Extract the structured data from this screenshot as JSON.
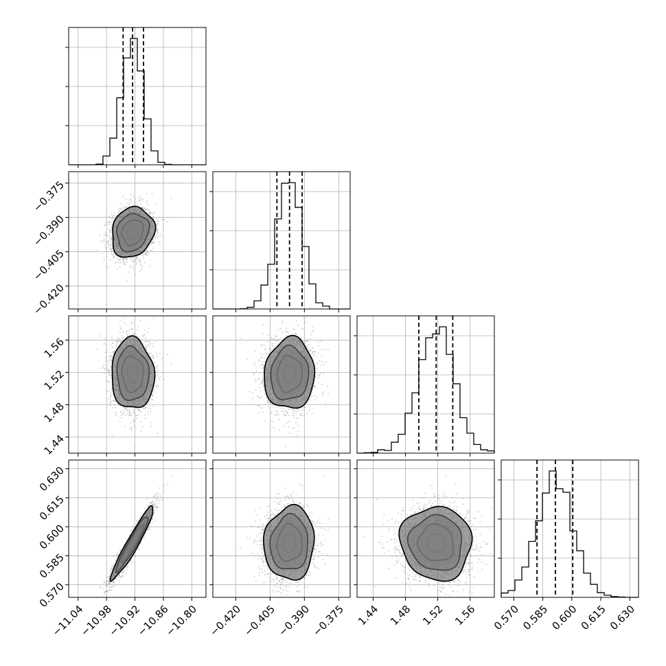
{
  "chart_data": {
    "type": "corner",
    "parameters": [
      {
        "name": "",
        "mean": -10.925,
        "sd": 0.0225,
        "range": [
          -11.06,
          -10.77
        ],
        "ticks": [
          -11.04,
          -10.98,
          -10.92,
          -10.86,
          -10.8
        ],
        "tick_labels": [
          "−11.04",
          "−10.98",
          "−10.92",
          "−10.86",
          "−10.80"
        ],
        "quantiles": [
          -10.945,
          -10.925,
          -10.902
        ]
      },
      {
        "name": "",
        "mean": -0.3965,
        "sd": 0.0055,
        "range": [
          -0.43,
          -0.37
        ],
        "ticks": [
          -0.42,
          -0.405,
          -0.39,
          -0.375
        ],
        "tick_labels": [
          "−0.420",
          "−0.405",
          "−0.390",
          "−0.375"
        ],
        "quantiles": [
          -0.402,
          -0.3965,
          -0.391
        ]
      },
      {
        "name": "",
        "mean": 1.518,
        "sd": 0.022,
        "range": [
          1.42,
          1.59
        ],
        "ticks": [
          1.44,
          1.48,
          1.52,
          1.56
        ],
        "tick_labels": [
          "1.44",
          "1.48",
          "1.52",
          "1.56"
        ],
        "quantiles": [
          1.4965,
          1.518,
          1.5385
        ]
      },
      {
        "name": "",
        "mean": 0.5915,
        "sd": 0.0095,
        "range": [
          0.5635,
          0.6345
        ],
        "ticks": [
          0.57,
          0.585,
          0.6,
          0.615,
          0.63
        ],
        "tick_labels": [
          "0.570",
          "0.585",
          "0.600",
          "0.615",
          "0.630"
        ],
        "quantiles": [
          0.582,
          0.5915,
          0.6005
        ]
      }
    ],
    "correlations": [
      [
        1,
        0.15,
        -0.05,
        0.95
      ],
      [
        0.15,
        1,
        0.05,
        0.05
      ],
      [
        -0.05,
        0.05,
        1,
        -0.05
      ],
      [
        0.95,
        0.05,
        -0.05,
        1
      ]
    ],
    "histogram_bins": 20,
    "contour_levels": [
      0.5,
      1.0,
      1.5,
      2.0
    ],
    "grid": true,
    "colors": {
      "points": "#9a9a9a",
      "density": "#000000",
      "lines": "#000000"
    }
  }
}
